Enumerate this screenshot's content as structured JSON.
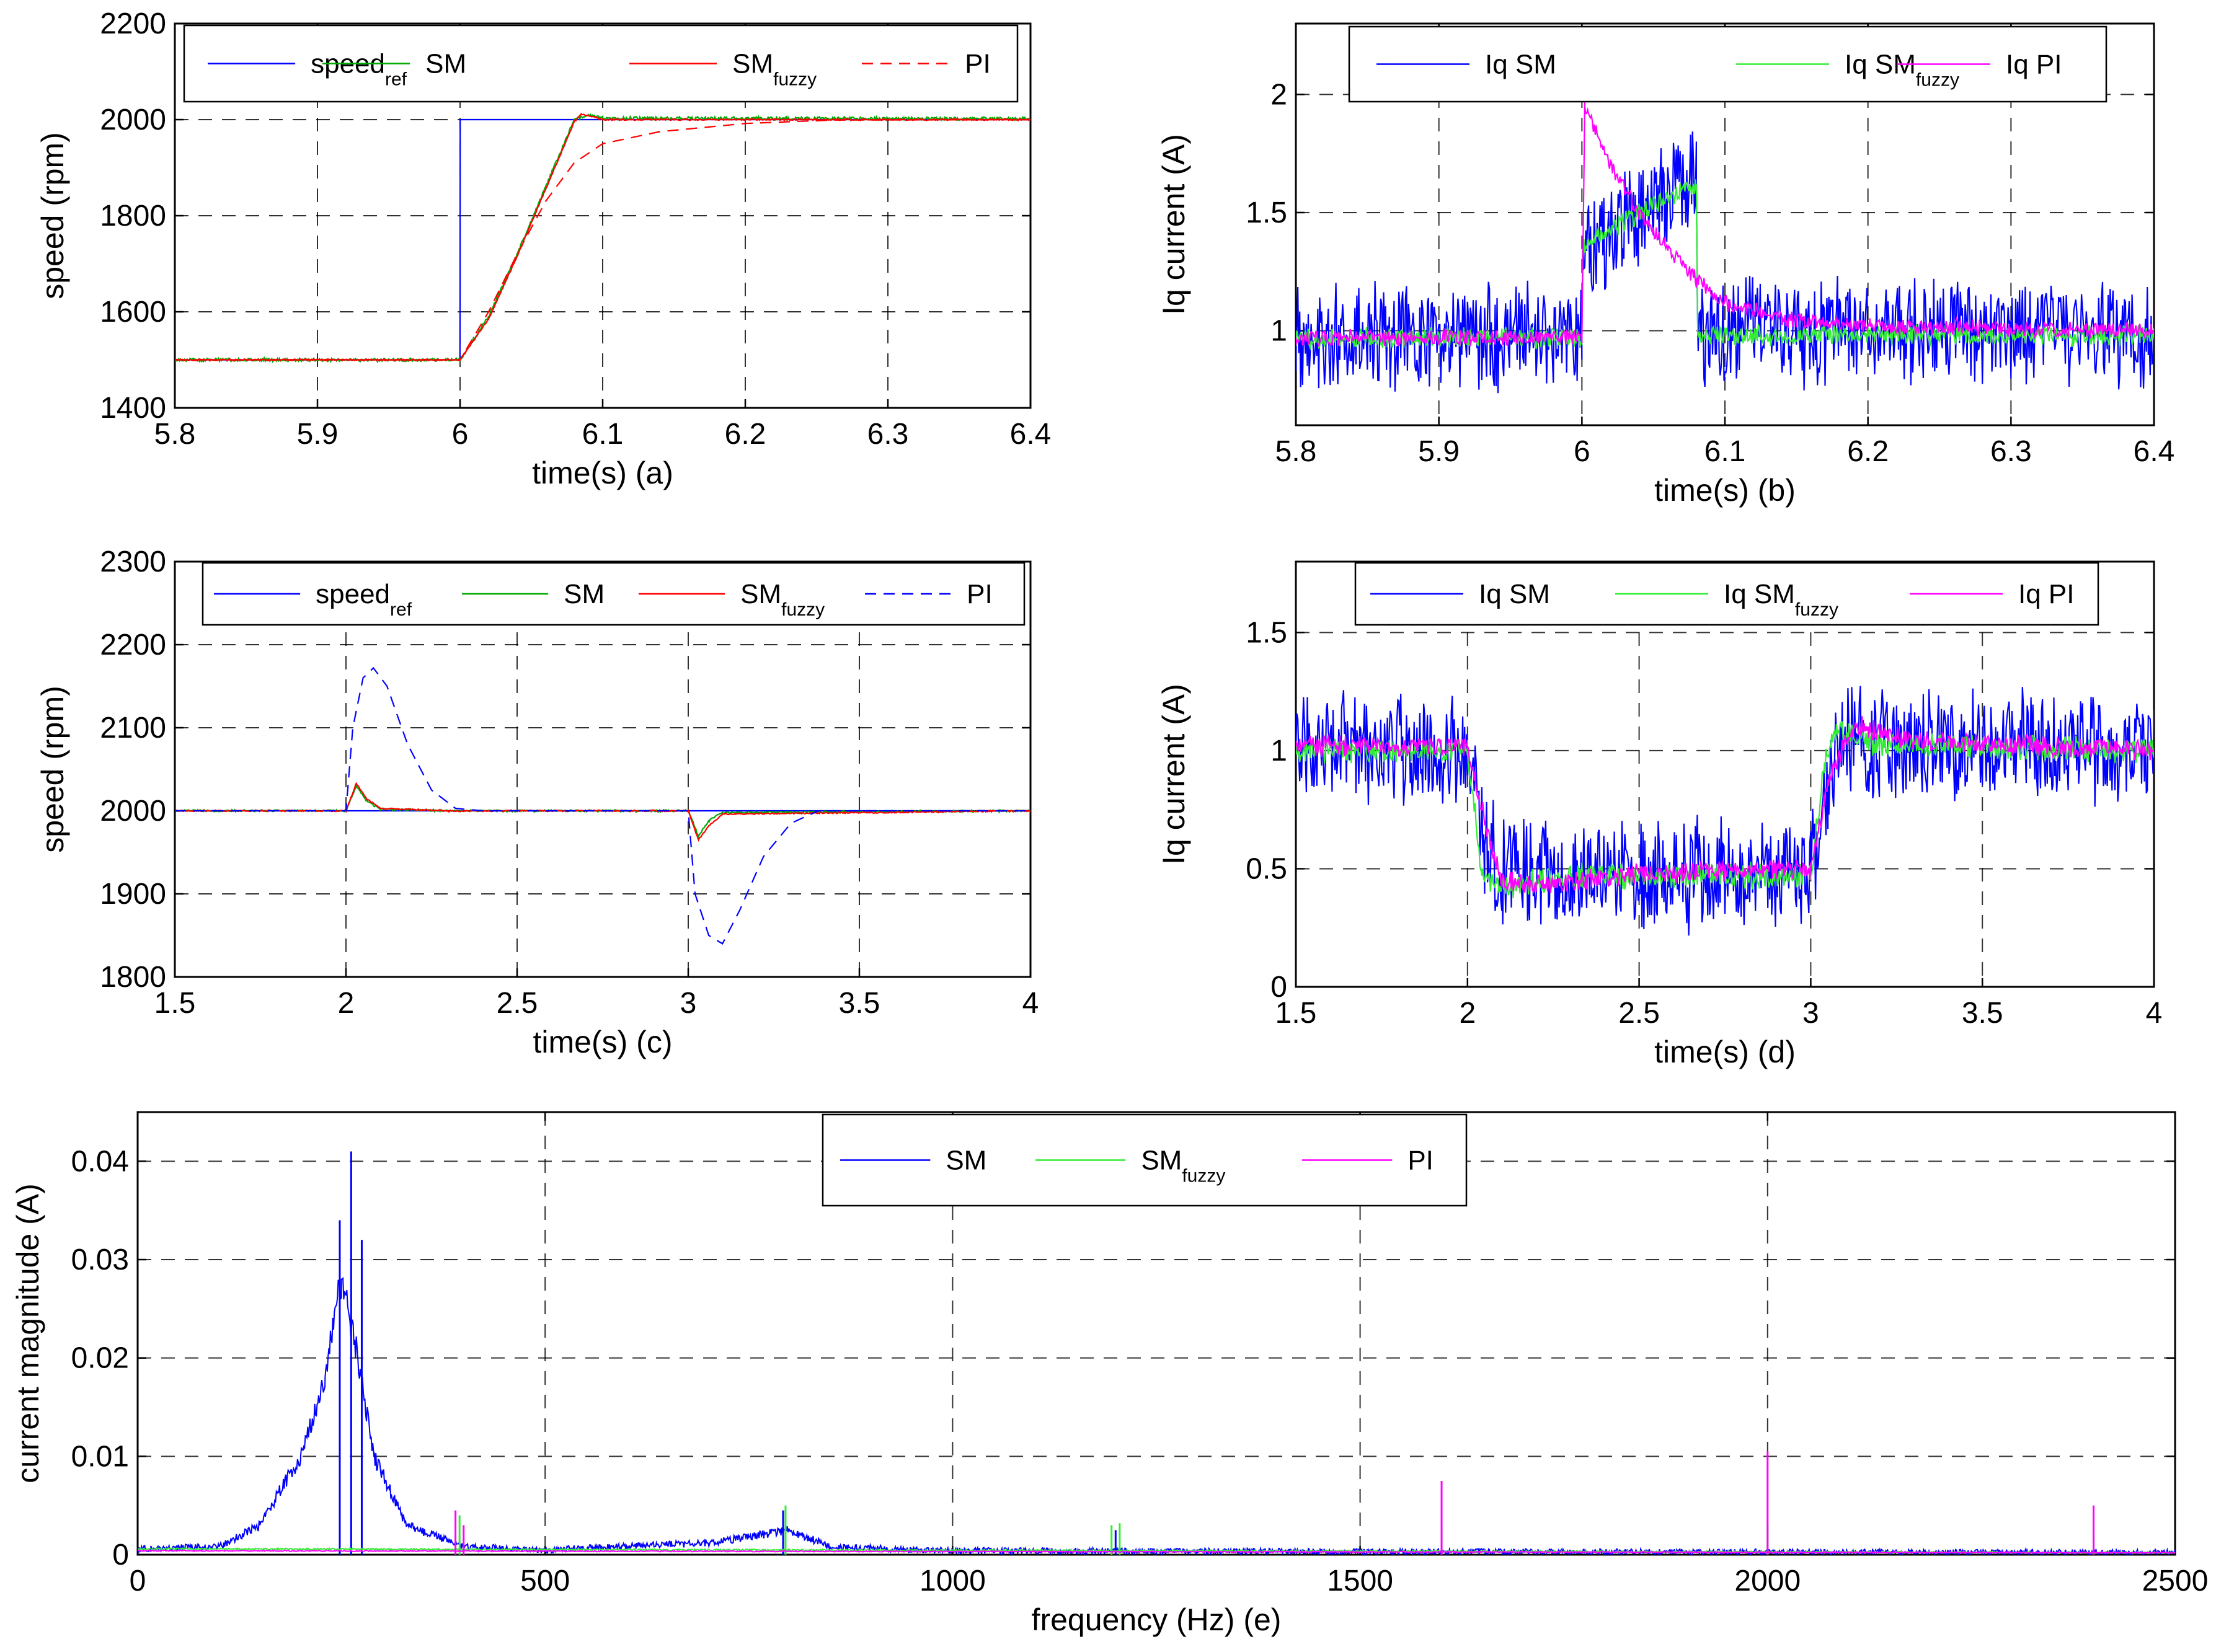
{
  "chart_data": [
    {
      "id": "a",
      "type": "line",
      "xlabel": "time(s) (a)",
      "ylabel": "speed (rpm)",
      "xlim": [
        5.8,
        6.4
      ],
      "ylim": [
        1400,
        2200
      ],
      "xticks": [
        5.8,
        5.9,
        6,
        6.1,
        6.2,
        6.3,
        6.4
      ],
      "xtick_labels": [
        "5.8",
        "5.9",
        "6",
        "6.1",
        "6.2",
        "6.3",
        "6.4"
      ],
      "yticks": [
        1400,
        1600,
        1800,
        2000,
        2200
      ],
      "ytick_labels": [
        "1400",
        "1600",
        "1800",
        "2000",
        "2200"
      ],
      "grid": true,
      "legend_position": "top",
      "series": [
        {
          "name": "speed",
          "sub": "ref",
          "color": "#0000ff",
          "dash": "solid",
          "noise": 0,
          "x": [
            5.8,
            5.9999,
            6.0,
            6.0001,
            6.4
          ],
          "y": [
            1500,
            1500,
            1650,
            2000,
            2000
          ]
        },
        {
          "name": "SM",
          "sub": "",
          "color": "#00aa00",
          "dash": "solid",
          "noise": 4,
          "x": [
            5.8,
            6.0,
            6.02,
            6.04,
            6.06,
            6.08,
            6.09,
            6.1,
            6.4
          ],
          "y": [
            1500,
            1500,
            1590,
            1720,
            1860,
            2000,
            2010,
            2003,
            2002
          ]
        },
        {
          "name": "SM",
          "sub": "fuzzy",
          "color": "#ff0000",
          "dash": "solid",
          "noise": 2,
          "x": [
            5.8,
            6.0,
            6.02,
            6.04,
            6.06,
            6.08,
            6.085,
            6.1,
            6.4
          ],
          "y": [
            1500,
            1500,
            1585,
            1715,
            1855,
            1995,
            2012,
            2000,
            2000
          ]
        },
        {
          "name": "PI",
          "sub": "",
          "color": "#ff0000",
          "dash": "dash",
          "noise": 0,
          "x": [
            5.8,
            6.0,
            6.02,
            6.04,
            6.06,
            6.08,
            6.1,
            6.14,
            6.2,
            6.26,
            6.4
          ],
          "y": [
            1500,
            1500,
            1600,
            1720,
            1830,
            1910,
            1950,
            1975,
            1992,
            1999,
            2000
          ]
        }
      ]
    },
    {
      "id": "b",
      "type": "line",
      "xlabel": "time(s)  (b)",
      "ylabel": "Iq current (A)",
      "xlim": [
        5.8,
        6.4
      ],
      "ylim": [
        0.6,
        2.3
      ],
      "xticks": [
        5.8,
        5.9,
        6,
        6.1,
        6.2,
        6.3,
        6.4
      ],
      "xtick_labels": [
        "5.8",
        "5.9",
        "6",
        "6.1",
        "6.2",
        "6.3",
        "6.4"
      ],
      "yticks": [
        1,
        1.5,
        2
      ],
      "ytick_labels": [
        "1",
        "1.5",
        "2"
      ],
      "grid": true,
      "legend_position": "top",
      "series": [
        {
          "name": "Iq SM",
          "sub": "",
          "color": "#0000ff",
          "dash": "solid",
          "noise": 0.26,
          "x": [
            5.8,
            6.0,
            6.0005,
            6.04,
            6.08,
            6.081,
            6.4
          ],
          "y": [
            0.97,
            0.97,
            1.35,
            1.5,
            1.65,
            1.0,
            1.0
          ]
        },
        {
          "name": "Iq SM",
          "sub": "fuzzy",
          "color": "#33ee33",
          "dash": "solid",
          "noise": 0.05,
          "x": [
            5.8,
            6.0,
            6.0005,
            6.04,
            6.08,
            6.081,
            6.4
          ],
          "y": [
            0.97,
            0.97,
            1.35,
            1.5,
            1.62,
            0.98,
            0.98
          ]
        },
        {
          "name": "Iq PI",
          "sub": "",
          "color": "#ff00ff",
          "dash": "solid",
          "noise": 0.04,
          "x": [
            5.8,
            6.0,
            6.002,
            6.02,
            6.04,
            6.06,
            6.08,
            6.1,
            6.14,
            6.2,
            6.4
          ],
          "y": [
            0.97,
            0.97,
            1.95,
            1.7,
            1.5,
            1.35,
            1.22,
            1.12,
            1.05,
            1.02,
            1.0
          ]
        }
      ]
    },
    {
      "id": "c",
      "type": "line",
      "xlabel": "time(s) (c)",
      "ylabel": "speed (rpm)",
      "xlim": [
        1.5,
        4
      ],
      "ylim": [
        1800,
        2300
      ],
      "xticks": [
        1.5,
        2,
        2.5,
        3,
        3.5,
        4
      ],
      "xtick_labels": [
        "1.5",
        "2",
        "2.5",
        "3",
        "3.5",
        "4"
      ],
      "yticks": [
        1800,
        1900,
        2000,
        2100,
        2200,
        2300
      ],
      "ytick_labels": [
        "1800",
        "1900",
        "2000",
        "2100",
        "2200",
        "2300"
      ],
      "grid": true,
      "legend_position": "top",
      "series": [
        {
          "name": "speed",
          "sub": "ref",
          "color": "#0000ff",
          "dash": "solid",
          "noise": 0,
          "x": [
            1.5,
            4
          ],
          "y": [
            2000,
            2000
          ]
        },
        {
          "name": "SM",
          "sub": "",
          "color": "#00aa00",
          "dash": "solid",
          "noise": 1.5,
          "x": [
            1.5,
            2.0,
            2.03,
            2.06,
            2.1,
            2.3,
            3.0,
            3.03,
            3.06,
            3.1,
            4
          ],
          "y": [
            2000,
            2000,
            2030,
            2012,
            2002,
            2000,
            2000,
            1970,
            1988,
            1998,
            2000
          ]
        },
        {
          "name": "SM",
          "sub": "fuzzy",
          "color": "#ff0000",
          "dash": "solid",
          "noise": 1,
          "x": [
            1.5,
            2.0,
            2.03,
            2.06,
            2.1,
            2.3,
            3.0,
            3.03,
            3.06,
            3.1,
            4
          ],
          "y": [
            2000,
            2000,
            2033,
            2015,
            2003,
            2000,
            2000,
            1965,
            1982,
            1996,
            2000
          ]
        },
        {
          "name": "PI",
          "sub": "",
          "color": "#0000ff",
          "dash": "dash",
          "noise": 0,
          "x": [
            1.5,
            2.0,
            2.02,
            2.05,
            2.08,
            2.12,
            2.18,
            2.25,
            2.32,
            2.4,
            3.0,
            3.02,
            3.06,
            3.1,
            3.15,
            3.22,
            3.3,
            3.38,
            4
          ],
          "y": [
            2000,
            2000,
            2100,
            2160,
            2172,
            2150,
            2080,
            2025,
            2003,
            2000,
            2000,
            1900,
            1850,
            1840,
            1880,
            1945,
            1985,
            2000,
            2000
          ]
        }
      ]
    },
    {
      "id": "d",
      "type": "line",
      "xlabel": "time(s) (d)",
      "ylabel": "Iq current (A)",
      "xlim": [
        1.5,
        4
      ],
      "ylim": [
        0,
        1.8
      ],
      "xticks": [
        1.5,
        2,
        2.5,
        3,
        3.5,
        4
      ],
      "xtick_labels": [
        "1.5",
        "2",
        "2.5",
        "3",
        "3.5",
        "4"
      ],
      "yticks": [
        0,
        0.5,
        1,
        1.5
      ],
      "ytick_labels": [
        "0",
        "0.5",
        "1",
        "1.5"
      ],
      "grid": true,
      "legend_position": "top",
      "series": [
        {
          "name": "Iq SM",
          "sub": "",
          "color": "#0000ff",
          "dash": "solid",
          "noise": 0.27,
          "x": [
            1.5,
            2.0,
            2.05,
            2.1,
            2.3,
            3.0,
            3.05,
            3.1,
            3.2,
            4
          ],
          "y": [
            1.0,
            1.0,
            0.6,
            0.48,
            0.48,
            0.48,
            0.9,
            1.05,
            1.02,
            1.02
          ]
        },
        {
          "name": "Iq SM",
          "sub": "fuzzy",
          "color": "#33ee33",
          "dash": "solid",
          "noise": 0.06,
          "x": [
            1.5,
            2.0,
            2.04,
            2.08,
            2.3,
            3.0,
            3.04,
            3.08,
            3.2,
            4
          ],
          "y": [
            1.0,
            1.0,
            0.5,
            0.42,
            0.47,
            0.47,
            0.95,
            1.08,
            1.02,
            1.0
          ]
        },
        {
          "name": "Iq PI",
          "sub": "",
          "color": "#ff00ff",
          "dash": "solid",
          "noise": 0.05,
          "x": [
            1.5,
            2.0,
            2.05,
            2.1,
            2.2,
            2.5,
            3.0,
            3.05,
            3.1,
            3.15,
            3.3,
            4
          ],
          "y": [
            1.02,
            1.02,
            0.7,
            0.45,
            0.43,
            0.48,
            0.5,
            0.85,
            1.05,
            1.1,
            1.04,
            1.0
          ]
        }
      ]
    },
    {
      "id": "e",
      "type": "line",
      "xlabel": "frequency (Hz)   (e)",
      "ylabel": "current magnitude (A)",
      "xlim": [
        0,
        2500
      ],
      "ylim": [
        0,
        0.045
      ],
      "xticks": [
        0,
        500,
        1000,
        1500,
        2000,
        2500
      ],
      "xtick_labels": [
        "0",
        "500",
        "1000",
        "1500",
        "2000",
        "2500"
      ],
      "yticks": [
        0,
        0.01,
        0.02,
        0.03,
        0.04
      ],
      "ytick_labels": [
        "0",
        "0.01",
        "0.02",
        "0.03",
        "0.04"
      ],
      "grid": true,
      "legend_position": "top",
      "series": [
        {
          "name": "SM",
          "sub": "",
          "color": "#0000ff",
          "dash": "solid",
          "noise": 0.0012,
          "x": [
            0,
            100,
            150,
            200,
            230,
            250,
            270,
            290,
            330,
            400,
            500,
            700,
            750,
            800,
            850,
            1000,
            1500,
            2500
          ],
          "y": [
            0.0006,
            0.0008,
            0.003,
            0.01,
            0.018,
            0.028,
            0.02,
            0.01,
            0.003,
            0.0008,
            0.0005,
            0.0012,
            0.0018,
            0.0025,
            0.0008,
            0.0004,
            0.0003,
            0.0002
          ],
          "peaks": [
            [
              262,
              0.041
            ],
            [
              248,
              0.034
            ],
            [
              275,
              0.032
            ],
            [
              792,
              0.0045
            ],
            [
              1200,
              0.0025
            ]
          ]
        },
        {
          "name": "SM",
          "sub": "fuzzy",
          "color": "#33ee33",
          "dash": "solid",
          "noise": 0.0003,
          "x": [
            0,
            2500
          ],
          "y": [
            0.0006,
            0.0002
          ],
          "peaks": [
            [
              395,
              0.004
            ],
            [
              795,
              0.005
            ],
            [
              1195,
              0.003
            ],
            [
              1205,
              0.0032
            ],
            [
              1600,
              0.003
            ],
            [
              2000,
              0.003
            ],
            [
              2400,
              0.002
            ]
          ]
        },
        {
          "name": "PI",
          "sub": "",
          "color": "#ff00ff",
          "dash": "solid",
          "noise": 0.0002,
          "x": [
            0,
            2500
          ],
          "y": [
            0.0004,
            0.0002
          ],
          "peaks": [
            [
              390,
              0.0045
            ],
            [
              400,
              0.003
            ],
            [
              1600,
              0.0075
            ],
            [
              2000,
              0.0105
            ],
            [
              2400,
              0.005
            ]
          ]
        }
      ]
    }
  ]
}
